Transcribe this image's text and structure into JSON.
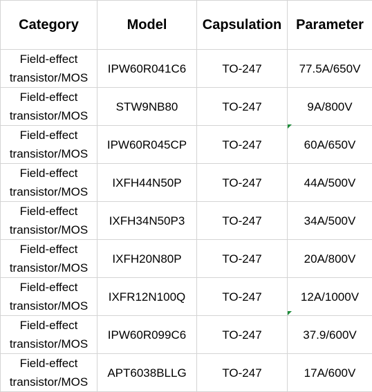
{
  "table": {
    "header": [
      "Category",
      "Model",
      "Capsulation",
      "Parameter"
    ],
    "rows": [
      [
        "Field-effect transistor/MOS",
        "IPW60R041C6",
        "TO-247",
        "77.5A/650V"
      ],
      [
        "Field-effect transistor/MOS",
        "STW9NB80",
        "TO-247",
        "9A/800V"
      ],
      [
        "Field-effect transistor/MOS",
        "IPW60R045CP",
        "TO-247",
        "60A/650V"
      ],
      [
        "Field-effect transistor/MOS",
        "IXFH44N50P",
        "TO-247",
        "44A/500V"
      ],
      [
        "Field-effect transistor/MOS",
        "IXFH34N50P3",
        "TO-247",
        "34A/500V"
      ],
      [
        "Field-effect transistor/MOS",
        "IXFH20N80P",
        "TO-247",
        "20A/800V"
      ],
      [
        "Field-effect transistor/MOS",
        "IXFR12N100Q",
        "TO-247",
        "12A/1000V"
      ],
      [
        "Field-effect transistor/MOS",
        "IPW60R099C6",
        "TO-247",
        "37.9/600V"
      ],
      [
        "Field-effect transistor/MOS",
        "APT6038BLLG",
        "TO-247",
        "17A/600V"
      ]
    ]
  }
}
